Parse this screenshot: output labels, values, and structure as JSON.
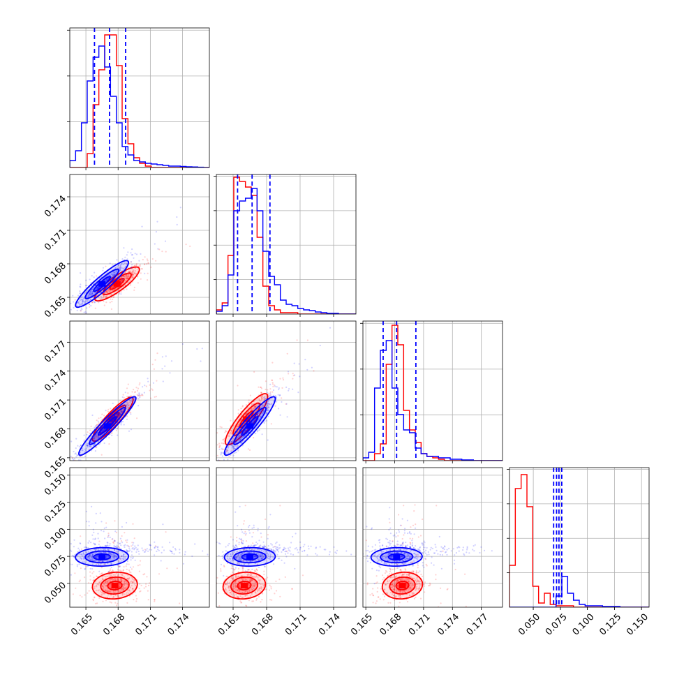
{
  "chart_data": {
    "type": "corner",
    "title": "",
    "parameters": 4,
    "colors": {
      "series_a": "#0000ff",
      "series_b": "#ff0000",
      "grid": "#b0b0b0"
    },
    "grid": true,
    "legend": "none",
    "axes": [
      {
        "range": [
          0.1635,
          0.1765
        ],
        "ticks": [
          "0.165",
          "0.168",
          "0.171",
          "0.174"
        ],
        "tick_values": [
          0.165,
          0.168,
          0.171,
          0.174
        ]
      },
      {
        "range": [
          0.1635,
          0.176
        ],
        "ticks": [
          "0.165",
          "0.168",
          "0.171",
          "0.174"
        ],
        "tick_values": [
          0.165,
          0.168,
          0.171,
          0.174
        ]
      },
      {
        "range": [
          0.1647,
          0.1792
        ],
        "ticks": [
          "0.165",
          "0.168",
          "0.171",
          "0.174",
          "0.177"
        ],
        "tick_values": [
          0.165,
          0.168,
          0.171,
          0.174,
          0.177
        ]
      },
      {
        "range": [
          0.028,
          0.157
        ],
        "ticks": [
          "0.050",
          "0.075",
          "0.100",
          "0.125",
          "0.150"
        ],
        "tick_values": [
          0.05,
          0.075,
          0.1,
          0.125,
          0.15
        ]
      }
    ],
    "histograms": [
      {
        "bins": [
          0.1635,
          0.1765,
          24
        ],
        "series_a": [
          0.05,
          0.12,
          0.32,
          0.62,
          0.79,
          0.87,
          0.72,
          0.51,
          0.32,
          0.15,
          0.09,
          0.05,
          0.04,
          0.03,
          0.025,
          0.02,
          0.015,
          0.01,
          0.01,
          0.008,
          0.005,
          0.004,
          0.002,
          0
        ],
        "series_b": [
          0,
          0,
          0,
          0.1,
          0.45,
          0.7,
          0.95,
          0.95,
          0.73,
          0.35,
          0.17,
          0.07,
          0.03,
          0.01,
          0,
          0,
          0,
          0,
          0,
          0,
          0,
          0,
          0,
          0
        ],
        "quantiles": [
          0.1658,
          0.1672,
          0.1687
        ],
        "y_ticks": 3
      },
      {
        "bins": [
          0.1635,
          0.176,
          24
        ],
        "series_a": [
          0.02,
          0.06,
          0.28,
          0.74,
          0.81,
          0.83,
          0.9,
          0.74,
          0.45,
          0.27,
          0.21,
          0.1,
          0.07,
          0.06,
          0.04,
          0.03,
          0.025,
          0.015,
          0.01,
          0.005,
          0.005,
          0,
          0,
          0
        ],
        "series_b": [
          0.03,
          0.08,
          0.42,
          0.98,
          0.95,
          0.91,
          0.85,
          0.55,
          0.2,
          0.06,
          0.03,
          0.01,
          0.01,
          0.01,
          0,
          0,
          0,
          0,
          0,
          0,
          0,
          0,
          0,
          0
        ],
        "quantiles": [
          0.1654,
          0.1667,
          0.1683
        ],
        "y_ticks": 4
      },
      {
        "bins": [
          0.1647,
          0.1792,
          24
        ],
        "series_a": [
          0.02,
          0.06,
          0.52,
          0.79,
          0.86,
          0.52,
          0.33,
          0.22,
          0.2,
          0.09,
          0.05,
          0.03,
          0.03,
          0.02,
          0.02,
          0.01,
          0.01,
          0.005,
          0.005,
          0,
          0,
          0,
          0,
          0
        ],
        "series_b": [
          0,
          0,
          0.05,
          0.12,
          0.69,
          0.97,
          0.83,
          0.36,
          0.22,
          0.13,
          0.05,
          0.03,
          0.02,
          0.01,
          0,
          0,
          0,
          0,
          0,
          0,
          0,
          0,
          0,
          0
        ],
        "quantiles": [
          0.1668,
          0.1682,
          0.1702
        ],
        "y_ticks": 3
      },
      {
        "bins": [
          0.028,
          0.157,
          24
        ],
        "series_a": [
          0,
          0,
          0,
          0,
          0,
          0,
          0,
          0,
          0.08,
          0.22,
          0.1,
          0.05,
          0.02,
          0.01,
          0.01,
          0.01,
          0.005,
          0.005,
          0.005,
          0,
          0,
          0,
          0,
          0
        ],
        "series_b": [
          0.3,
          0.85,
          0.95,
          0.72,
          0.15,
          0.03,
          0.1,
          0.02,
          0.01,
          0.01,
          0.01,
          0,
          0,
          0,
          0,
          0,
          0,
          0,
          0,
          0,
          0,
          0,
          0,
          0
        ],
        "quantiles": [
          0.0688,
          0.0715,
          0.0737,
          0.0763
        ],
        "y_ticks": 4
      }
    ],
    "correlations": [
      {
        "x": 0,
        "y": 1,
        "series_a": {
          "center": [
            0.1665,
            0.1662
          ],
          "spread": [
            0.0013,
            0.0011
          ],
          "rho": 0.92
        },
        "series_b": {
          "center": [
            0.1679,
            0.1662
          ],
          "spread": [
            0.0011,
            0.0008
          ],
          "rho": 0.85
        }
      },
      {
        "x": 0,
        "y": 2,
        "series_a": {
          "center": [
            0.167,
            0.1683
          ],
          "spread": [
            0.0014,
            0.0016
          ],
          "rho": 0.95
        },
        "series_b": {
          "center": [
            0.1675,
            0.169
          ],
          "spread": [
            0.001,
            0.0012
          ],
          "rho": 0.9
        }
      },
      {
        "x": 1,
        "y": 2,
        "series_a": {
          "center": [
            0.1665,
            0.1683
          ],
          "spread": [
            0.0012,
            0.0016
          ],
          "rho": 0.93
        },
        "series_b": {
          "center": [
            0.1662,
            0.169
          ],
          "spread": [
            0.001,
            0.0014
          ],
          "rho": 0.88
        }
      },
      {
        "x": 0,
        "y": 3,
        "series_a": {
          "center": [
            0.1665,
            0.0745
          ],
          "spread": [
            0.0013,
            0.0045
          ],
          "rho": 0.05
        },
        "series_b": {
          "center": [
            0.1677,
            0.048
          ],
          "spread": [
            0.0011,
            0.0065
          ],
          "rho": 0.1
        }
      },
      {
        "x": 1,
        "y": 3,
        "series_a": {
          "center": [
            0.1665,
            0.0745
          ],
          "spread": [
            0.0012,
            0.0045
          ],
          "rho": 0.05
        },
        "series_b": {
          "center": [
            0.166,
            0.048
          ],
          "spread": [
            0.001,
            0.0065
          ],
          "rho": 0.1
        }
      },
      {
        "x": 2,
        "y": 3,
        "series_a": {
          "center": [
            0.1682,
            0.0745
          ],
          "spread": [
            0.0014,
            0.0045
          ],
          "rho": 0.05
        },
        "series_b": {
          "center": [
            0.1688,
            0.048
          ],
          "spread": [
            0.0011,
            0.0065
          ],
          "rho": 0.1
        }
      }
    ]
  }
}
